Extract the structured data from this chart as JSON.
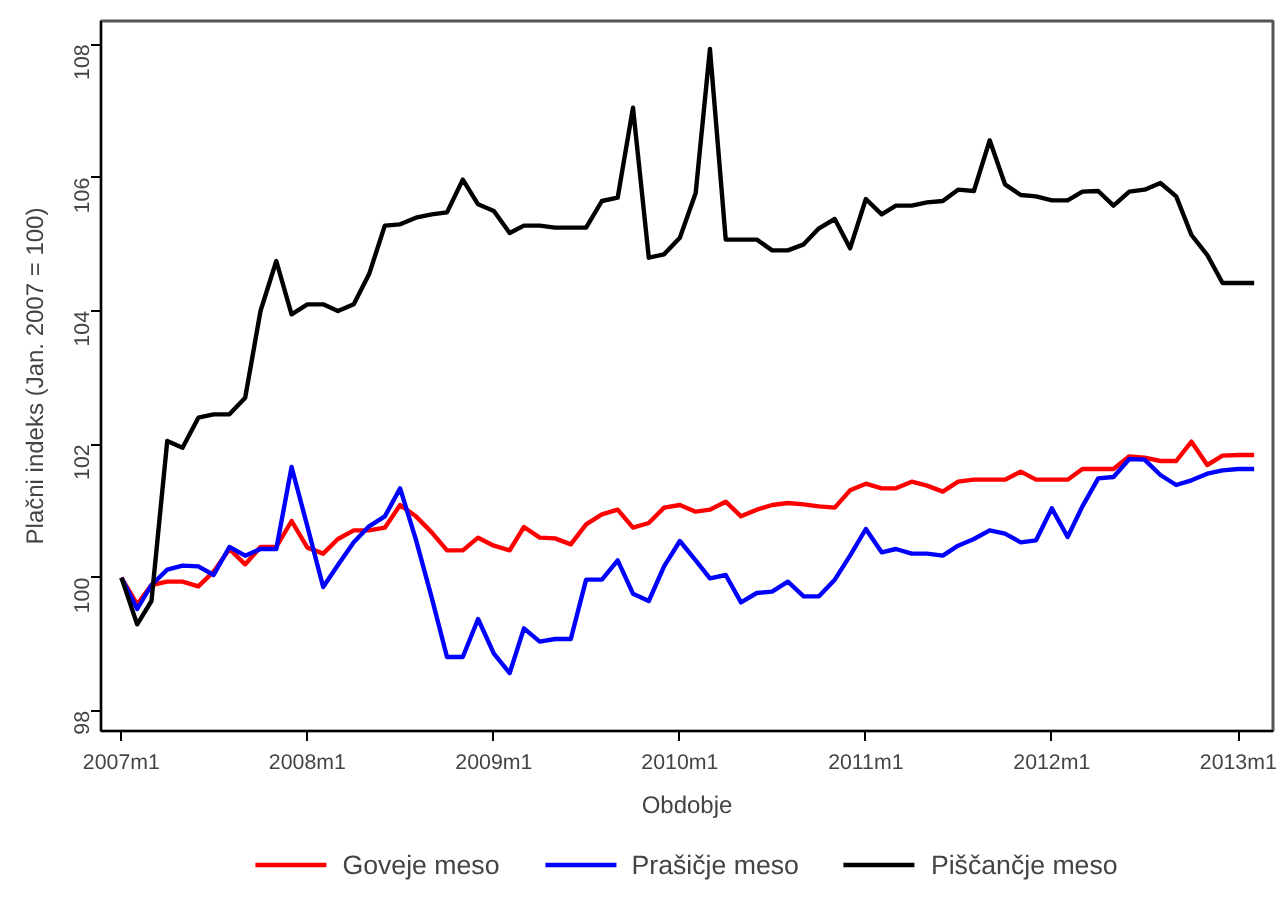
{
  "chart_data": {
    "type": "line",
    "xlabel": "Obdobje",
    "ylabel": "Plačni indeks (Jan. 2007 = 100)",
    "x": [
      "2007-01",
      "2007-02",
      "2007-03",
      "2007-04",
      "2007-05",
      "2007-06",
      "2007-07",
      "2007-08",
      "2007-09",
      "2007-10",
      "2007-11",
      "2007-12",
      "2008-01",
      "2008-02",
      "2008-03",
      "2008-04",
      "2008-05",
      "2008-06",
      "2008-07",
      "2008-08",
      "2008-09",
      "2008-10",
      "2008-11",
      "2008-12",
      "2009-01",
      "2009-02",
      "2009-03",
      "2009-04",
      "2009-05",
      "2009-06",
      "2009-07",
      "2009-08",
      "2009-09",
      "2009-10",
      "2009-11",
      "2009-12",
      "2010-01",
      "2010-02",
      "2010-03",
      "2010-04",
      "2010-05",
      "2010-06",
      "2010-07",
      "2010-08",
      "2010-09",
      "2010-10",
      "2010-11",
      "2010-12",
      "2011-01",
      "2011-02",
      "2011-03",
      "2011-04",
      "2011-05",
      "2011-06",
      "2011-07",
      "2011-08",
      "2011-09",
      "2011-10",
      "2011-11",
      "2011-12",
      "2012-01",
      "2012-02",
      "2012-03",
      "2012-04",
      "2012-05",
      "2012-06",
      "2012-07",
      "2012-08",
      "2012-09",
      "2012-10",
      "2012-11",
      "2012-12",
      "2013-01",
      "2013-02"
    ],
    "series": [
      {
        "name": "Goveje meso",
        "color": "#ff0000",
        "values": [
          100,
          99.6,
          99.89,
          99.94,
          99.94,
          99.87,
          100.09,
          100.43,
          100.2,
          100.46,
          100.46,
          100.85,
          100.45,
          100.36,
          100.58,
          100.71,
          100.71,
          100.75,
          101.09,
          100.92,
          100.68,
          100.41,
          100.41,
          100.6,
          100.48,
          100.41,
          100.76,
          100.6,
          100.59,
          100.5,
          100.8,
          100.95,
          101.02,
          100.75,
          100.82,
          101.05,
          101.09,
          100.99,
          101.02,
          101.14,
          100.92,
          101.02,
          101.09,
          101.12,
          101.1,
          101.07,
          101.05,
          101.31,
          101.41,
          101.34,
          101.34,
          101.44,
          101.38,
          101.29,
          101.44,
          101.47,
          101.47,
          101.47,
          101.59,
          101.47,
          101.47,
          101.47,
          101.63,
          101.63,
          101.63,
          101.82,
          101.8,
          101.75,
          101.75,
          102.04,
          101.69,
          101.83,
          101.84,
          101.84
        ]
      },
      {
        "name": "Prašičje meso",
        "color": "#0000ff",
        "values": [
          100,
          99.53,
          99.89,
          100.12,
          100.18,
          100.17,
          100.04,
          100.46,
          100.33,
          100.43,
          100.43,
          101.66,
          100.77,
          99.86,
          100.19,
          100.53,
          100.77,
          100.92,
          101.34,
          100.57,
          99.7,
          98.81,
          98.81,
          99.38,
          98.86,
          98.57,
          99.24,
          99.04,
          99.08,
          99.08,
          99.97,
          99.97,
          100.26,
          99.76,
          99.65,
          100.17,
          100.55,
          100.26,
          99.99,
          100.04,
          99.63,
          99.77,
          99.79,
          99.94,
          99.72,
          99.72,
          99.97,
          100.33,
          100.73,
          100.38,
          100.43,
          100.36,
          100.36,
          100.33,
          100.48,
          100.58,
          100.71,
          100.66,
          100.53,
          100.56,
          101.04,
          100.61,
          101.07,
          101.49,
          101.51,
          101.78,
          101.77,
          101.54,
          101.39,
          101.46,
          101.56,
          101.61,
          101.63,
          101.63
        ]
      },
      {
        "name": "Piščančje meso",
        "color": "#000000",
        "values": [
          100,
          99.3,
          99.65,
          102.05,
          101.95,
          102.4,
          102.45,
          102.45,
          102.7,
          104.0,
          104.75,
          103.95,
          104.1,
          104.1,
          104.0,
          104.1,
          104.55,
          105.28,
          105.3,
          105.4,
          105.45,
          105.48,
          105.97,
          105.6,
          105.5,
          105.17,
          105.28,
          105.28,
          105.25,
          105.25,
          105.25,
          105.65,
          105.7,
          107.05,
          104.8,
          104.85,
          105.1,
          105.77,
          107.93,
          105.07,
          105.07,
          105.07,
          104.91,
          104.91,
          105.0,
          105.24,
          105.38,
          104.94,
          105.68,
          105.45,
          105.58,
          105.58,
          105.63,
          105.65,
          105.82,
          105.8,
          106.56,
          105.9,
          105.74,
          105.72,
          105.66,
          105.66,
          105.79,
          105.8,
          105.58,
          105.79,
          105.82,
          105.92,
          105.72,
          105.14,
          104.84,
          104.42,
          104.42,
          104.42
        ]
      }
    ],
    "xlim": [
      "2006-11-22",
      "2013-03-10"
    ],
    "xticks": [
      {
        "value": "2007-01",
        "label": "2007m1"
      },
      {
        "value": "2008-01",
        "label": "2008m1"
      },
      {
        "value": "2009-01",
        "label": "2009m1"
      },
      {
        "value": "2010-01",
        "label": "2010m1"
      },
      {
        "value": "2011-01",
        "label": "2011m1"
      },
      {
        "value": "2012-01",
        "label": "2012m1"
      },
      {
        "value": "2013-01",
        "label": "2013m1"
      }
    ],
    "ylim": [
      97.7,
      108.35
    ],
    "yticks": [
      98,
      100,
      102,
      104,
      106,
      108
    ],
    "grid": false,
    "legend": "bottom",
    "line_style": "solid",
    "marker": "none"
  }
}
